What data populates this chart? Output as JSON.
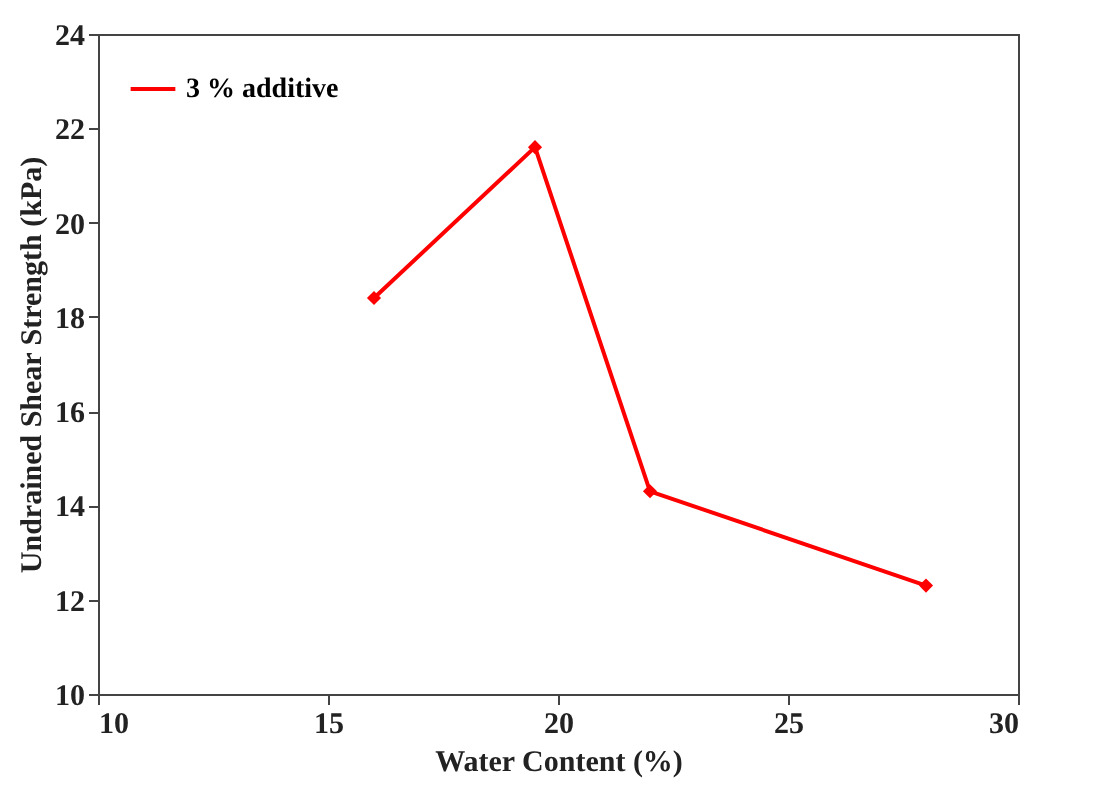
{
  "chart_data": {
    "type": "line",
    "xlabel": "Water Content (%)",
    "ylabel": "Undrained  Shear Strength (kPa)",
    "x": [
      16,
      19.5,
      22,
      28
    ],
    "series": [
      {
        "name": "3 % additive",
        "color": "#ff0000",
        "values": [
          18.4,
          21.6,
          14.3,
          12.3
        ]
      }
    ],
    "xlim": [
      10,
      30
    ],
    "xticks": [
      10,
      15,
      20,
      25,
      30
    ],
    "ylim": [
      10,
      24
    ],
    "yticks": [
      10,
      12,
      14,
      16,
      18,
      20,
      22,
      24
    ],
    "grid": false,
    "legend": "top left",
    "marker": "diamond",
    "line_style": "solid"
  }
}
